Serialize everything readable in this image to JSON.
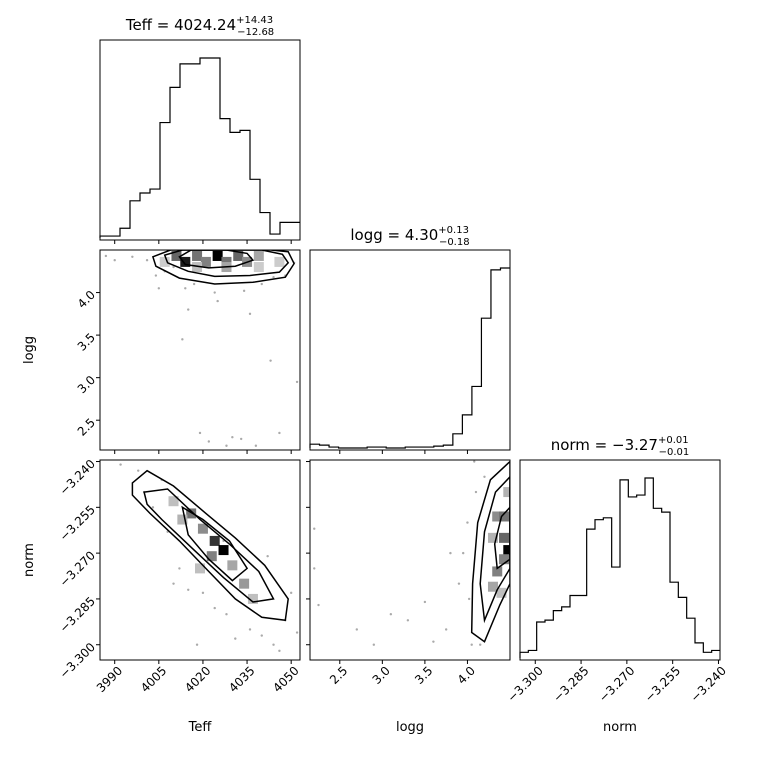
{
  "chart_data": {
    "type": "corner",
    "parameters": [
      {
        "name": "Teff",
        "label": "Teff",
        "median": "4024.24",
        "plus": "+14.43",
        "minus": "−12.68",
        "range": [
          3985,
          4053
        ],
        "ticks": [
          3990,
          4005,
          4020,
          4035,
          4050
        ],
        "tick_labels": [
          "3990",
          "4005",
          "4020",
          "4035",
          "4050"
        ]
      },
      {
        "name": "logg",
        "label": "logg",
        "median": "4.30",
        "plus": "+0.13",
        "minus": "−0.18",
        "range": [
          2.15,
          4.5
        ],
        "ticks": [
          2.5,
          3.0,
          3.5,
          4.0
        ],
        "tick_labels": [
          "2.5",
          "3.0",
          "3.5",
          "4.0"
        ]
      },
      {
        "name": "norm",
        "label": "norm",
        "median": "−3.27",
        "plus": "+0.01",
        "minus": "−0.01",
        "range": [
          -3.305,
          -3.2395
        ],
        "ticks": [
          -3.3,
          -3.285,
          -3.27,
          -3.255,
          -3.24
        ],
        "tick_labels": [
          "−3.300",
          "−3.285",
          "−3.270",
          "−3.255",
          "−3.240"
        ]
      }
    ],
    "title_prefix": {
      "Teff": "Teff = ",
      "logg": "logg = ",
      "norm": "norm = "
    },
    "histograms": {
      "Teff": [
        1,
        1,
        5,
        19,
        23,
        25,
        59,
        77,
        89,
        89,
        92,
        92,
        61,
        54,
        55,
        30,
        13,
        2,
        8,
        8
      ],
      "logg": [
        4,
        3,
        1,
        0,
        0,
        0,
        1,
        1,
        0,
        0,
        1,
        1,
        1,
        2,
        3,
        15,
        35,
        65,
        137,
        188,
        190
      ],
      "norm": [
        3,
        4,
        19,
        20,
        25,
        27,
        33,
        33,
        68,
        73,
        74,
        48,
        94,
        85,
        86,
        95,
        79,
        77,
        40,
        32,
        21,
        8,
        3,
        4
      ]
    },
    "scatter_samples": {
      "Teff_logg": [
        [
          3987,
          4.43
        ],
        [
          3990,
          4.38
        ],
        [
          3996,
          4.42
        ],
        [
          4001,
          4.38
        ],
        [
          4005,
          4.05
        ],
        [
          4007,
          4.25
        ],
        [
          4010,
          4.3
        ],
        [
          4013,
          3.45
        ],
        [
          4015,
          3.8
        ],
        [
          4017,
          4.1
        ],
        [
          4019,
          2.35
        ],
        [
          4022,
          2.25
        ],
        [
          4025,
          3.9
        ],
        [
          4028,
          2.2
        ],
        [
          4030,
          2.3
        ],
        [
          4033,
          2.28
        ],
        [
          4036,
          3.75
        ],
        [
          4038,
          2.2
        ],
        [
          4040,
          4.1
        ],
        [
          4043,
          3.2
        ],
        [
          4046,
          2.35
        ],
        [
          4048,
          4.2
        ],
        [
          4051,
          4.35
        ],
        [
          4052,
          2.95
        ],
        [
          4044,
          4.18
        ],
        [
          4034,
          4.02
        ],
        [
          4024,
          4.0
        ],
        [
          4014,
          4.05
        ],
        [
          4004,
          4.2
        ],
        [
          4045,
          4.32
        ]
      ],
      "Teff_norm": [
        [
          3987,
          -3.239
        ],
        [
          3992,
          -3.241
        ],
        [
          3998,
          -3.243
        ],
        [
          4003,
          -3.255
        ],
        [
          4008,
          -3.263
        ],
        [
          4012,
          -3.275
        ],
        [
          4015,
          -3.282
        ],
        [
          4020,
          -3.283
        ],
        [
          4024,
          -3.288
        ],
        [
          4028,
          -3.29
        ],
        [
          4031,
          -3.298
        ],
        [
          4036,
          -3.295
        ],
        [
          4040,
          -3.297
        ],
        [
          4044,
          -3.3
        ],
        [
          4048,
          -3.292
        ],
        [
          4050,
          -3.283
        ],
        [
          4052,
          -3.296
        ],
        [
          4018,
          -3.3
        ],
        [
          4010,
          -3.28
        ],
        [
          4027,
          -3.266
        ],
        [
          4042,
          -3.271
        ],
        [
          4006,
          -3.246
        ],
        [
          4000,
          -3.25
        ],
        [
          4046,
          -3.302
        ]
      ],
      "logg_norm": [
        [
          2.2,
          -3.262
        ],
        [
          2.2,
          -3.275
        ],
        [
          2.25,
          -3.287
        ],
        [
          2.7,
          -3.295
        ],
        [
          3.1,
          -3.29
        ],
        [
          3.3,
          -3.292
        ],
        [
          3.6,
          -3.299
        ],
        [
          3.75,
          -3.295
        ],
        [
          3.9,
          -3.28
        ],
        [
          3.95,
          -3.27
        ],
        [
          4.0,
          -3.26
        ],
        [
          4.02,
          -3.285
        ],
        [
          4.05,
          -3.3
        ],
        [
          4.08,
          -3.24
        ],
        [
          4.1,
          -3.25
        ],
        [
          4.15,
          -3.3
        ],
        [
          4.2,
          -3.245
        ],
        [
          3.5,
          -3.286
        ],
        [
          3.8,
          -3.27
        ],
        [
          2.9,
          -3.3
        ]
      ]
    },
    "density_cells": {
      "Teff_logg": [
        [
          4011,
          4.43,
          0.6
        ],
        [
          4014,
          4.36,
          0.9
        ],
        [
          4018,
          4.43,
          0.55
        ],
        [
          4021,
          4.36,
          0.5
        ],
        [
          4025,
          4.43,
          1.0
        ],
        [
          4028,
          4.36,
          0.55
        ],
        [
          4032,
          4.43,
          0.6
        ],
        [
          4035,
          4.36,
          0.45
        ],
        [
          4039,
          4.43,
          0.35
        ],
        [
          4018,
          4.3,
          0.25
        ],
        [
          4028,
          4.3,
          0.35
        ],
        [
          4039,
          4.3,
          0.2
        ],
        [
          4007,
          4.36,
          0.2
        ],
        [
          4046,
          4.36,
          0.2
        ]
      ],
      "Teff_norm": [
        [
          4016,
          -3.257,
          0.55
        ],
        [
          4020,
          -3.262,
          0.45
        ],
        [
          4024,
          -3.266,
          0.8
        ],
        [
          4027,
          -3.269,
          1.0
        ],
        [
          4023,
          -3.271,
          0.5
        ],
        [
          4030,
          -3.274,
          0.35
        ],
        [
          4034,
          -3.28,
          0.4
        ],
        [
          4013,
          -3.259,
          0.3
        ],
        [
          4019,
          -3.275,
          0.25
        ],
        [
          4037,
          -3.285,
          0.25
        ],
        [
          4010,
          -3.253,
          0.25
        ]
      ],
      "logg_norm": [
        [
          4.35,
          -3.258,
          0.45
        ],
        [
          4.43,
          -3.258,
          0.55
        ],
        [
          4.43,
          -3.265,
          0.6
        ],
        [
          4.48,
          -3.269,
          1.0
        ],
        [
          4.43,
          -3.272,
          0.5
        ],
        [
          4.35,
          -3.276,
          0.5
        ],
        [
          4.3,
          -3.281,
          0.35
        ],
        [
          4.3,
          -3.265,
          0.3
        ],
        [
          4.4,
          -3.283,
          0.25
        ],
        [
          4.48,
          -3.25,
          0.3
        ]
      ]
    },
    "contours": {
      "Teff_logg": [
        [
          [
            4013,
            4.5
          ],
          [
            4007,
            4.44
          ],
          [
            4008,
            4.35
          ],
          [
            4015,
            4.25
          ],
          [
            4024,
            4.19
          ],
          [
            4036,
            4.2
          ],
          [
            4046,
            4.24
          ],
          [
            4049,
            4.35
          ],
          [
            4047,
            4.45
          ],
          [
            4040,
            4.5
          ]
        ],
        [
          [
            4009,
            4.5
          ],
          [
            4003,
            4.42
          ],
          [
            4004,
            4.31
          ],
          [
            4012,
            4.17
          ],
          [
            4024,
            4.1
          ],
          [
            4037,
            4.12
          ],
          [
            4048,
            4.18
          ],
          [
            4051,
            4.34
          ],
          [
            4049,
            4.48
          ],
          [
            4043,
            4.5
          ]
        ],
        [
          [
            4016,
            4.5
          ],
          [
            4012,
            4.42
          ],
          [
            4014,
            4.33
          ],
          [
            4022,
            4.29
          ],
          [
            4031,
            4.31
          ],
          [
            4037,
            4.38
          ],
          [
            4035,
            4.46
          ],
          [
            4028,
            4.5
          ]
        ]
      ],
      "Teff_norm": [
        [
          [
            3996,
            -3.247
          ],
          [
            4001,
            -3.243
          ],
          [
            4010,
            -3.248
          ],
          [
            4021,
            -3.257
          ],
          [
            4031,
            -3.265
          ],
          [
            4041,
            -3.274
          ],
          [
            4049,
            -3.285
          ],
          [
            4048,
            -3.292
          ],
          [
            4040,
            -3.291
          ],
          [
            4031,
            -3.285
          ],
          [
            4022,
            -3.276
          ],
          [
            4012,
            -3.266
          ],
          [
            4002,
            -3.257
          ],
          [
            3996,
            -3.251
          ]
        ],
        [
          [
            4000,
            -3.25
          ],
          [
            4008,
            -3.249
          ],
          [
            4019,
            -3.259
          ],
          [
            4029,
            -3.267
          ],
          [
            4039,
            -3.276
          ],
          [
            4044,
            -3.285
          ],
          [
            4037,
            -3.286
          ],
          [
            4027,
            -3.278
          ],
          [
            4017,
            -3.269
          ],
          [
            4006,
            -3.259
          ],
          [
            4001,
            -3.254
          ]
        ],
        [
          [
            4013,
            -3.255
          ],
          [
            4020,
            -3.259
          ],
          [
            4029,
            -3.266
          ],
          [
            4035,
            -3.275
          ],
          [
            4030,
            -3.279
          ],
          [
            4022,
            -3.272
          ],
          [
            4015,
            -3.264
          ]
        ]
      ],
      "logg_norm": [
        [
          [
            4.5,
            -3.24
          ],
          [
            4.27,
            -3.246
          ],
          [
            4.12,
            -3.26
          ],
          [
            4.06,
            -3.28
          ],
          [
            4.05,
            -3.296
          ],
          [
            4.2,
            -3.299
          ],
          [
            4.38,
            -3.287
          ],
          [
            4.5,
            -3.28
          ]
        ],
        [
          [
            4.5,
            -3.245
          ],
          [
            4.33,
            -3.25
          ],
          [
            4.2,
            -3.263
          ],
          [
            4.15,
            -3.28
          ],
          [
            4.2,
            -3.292
          ],
          [
            4.35,
            -3.282
          ],
          [
            4.5,
            -3.275
          ]
        ],
        [
          [
            4.5,
            -3.255
          ],
          [
            4.4,
            -3.258
          ],
          [
            4.32,
            -3.267
          ],
          [
            4.35,
            -3.275
          ],
          [
            4.5,
            -3.272
          ]
        ]
      ]
    },
    "grid": false
  }
}
